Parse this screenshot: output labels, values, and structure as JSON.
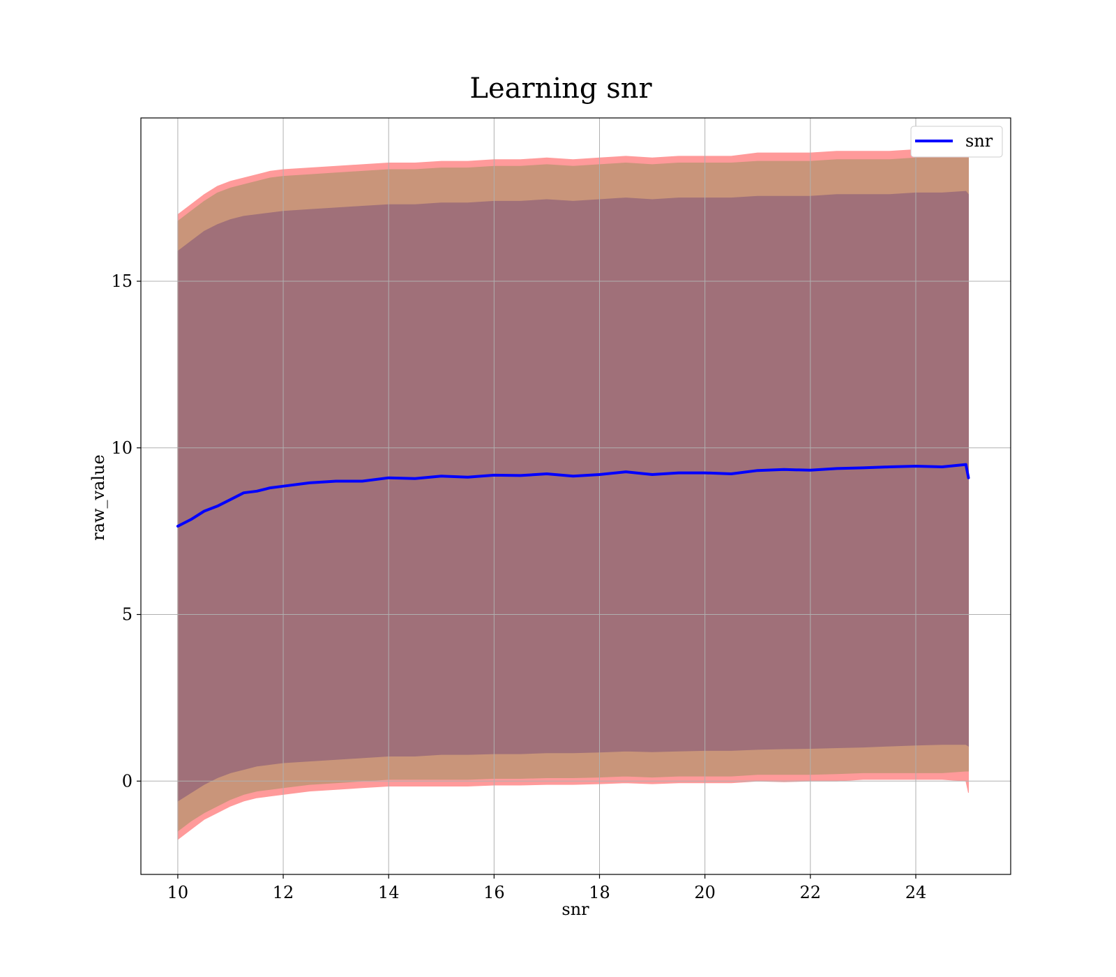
{
  "chart_data": {
    "type": "line",
    "title": "Learning snr",
    "xlabel": "snr",
    "ylabel": "raw_value",
    "xlim": [
      9.3,
      25.8
    ],
    "ylim": [
      -2.8,
      19.9
    ],
    "xticks": [
      10,
      12,
      14,
      16,
      18,
      20,
      22,
      24
    ],
    "yticks": [
      0,
      5,
      10,
      15
    ],
    "grid": true,
    "legend": {
      "placement": "top-right",
      "entries": [
        "snr"
      ]
    },
    "colors": {
      "line": "#0000ff",
      "outer_band": "#ff9a9a",
      "middle_band": "#c9957a",
      "inner_band": "#a07079",
      "grid": "#b0b0b0"
    },
    "series": [
      {
        "name": "snr",
        "x": [
          10,
          10.25,
          10.5,
          10.75,
          11,
          11.25,
          11.5,
          11.75,
          12,
          12.5,
          13,
          13.5,
          14,
          14.5,
          15,
          15.5,
          16,
          16.5,
          17,
          17.5,
          18,
          18.5,
          19,
          19.5,
          20,
          20.5,
          21,
          21.5,
          22,
          22.5,
          23,
          23.5,
          24,
          24.5,
          24.95,
          25
        ],
        "values": [
          7.65,
          7.85,
          8.1,
          8.25,
          8.45,
          8.65,
          8.7,
          8.8,
          8.85,
          8.95,
          9.0,
          9.0,
          9.1,
          9.08,
          9.15,
          9.12,
          9.18,
          9.17,
          9.22,
          9.15,
          9.2,
          9.28,
          9.2,
          9.25,
          9.25,
          9.22,
          9.32,
          9.35,
          9.33,
          9.38,
          9.4,
          9.43,
          9.45,
          9.43,
          9.5,
          9.1
        ]
      }
    ],
    "bands": [
      {
        "color_key": "outer_band",
        "upper": [
          17.0,
          17.3,
          17.6,
          17.85,
          18.0,
          18.1,
          18.2,
          18.3,
          18.35,
          18.4,
          18.45,
          18.5,
          18.55,
          18.55,
          18.6,
          18.6,
          18.65,
          18.65,
          18.7,
          18.65,
          18.7,
          18.75,
          18.7,
          18.75,
          18.75,
          18.75,
          18.85,
          18.85,
          18.85,
          18.9,
          18.9,
          18.9,
          18.95,
          18.95,
          18.95,
          18.9
        ],
        "lower": [
          -1.75,
          -1.45,
          -1.15,
          -0.95,
          -0.75,
          -0.6,
          -0.5,
          -0.45,
          -0.4,
          -0.3,
          -0.25,
          -0.2,
          -0.15,
          -0.15,
          -0.15,
          -0.15,
          -0.12,
          -0.12,
          -0.1,
          -0.1,
          -0.08,
          -0.05,
          -0.08,
          -0.05,
          -0.05,
          -0.05,
          0.0,
          -0.02,
          0.0,
          0.0,
          0.05,
          0.05,
          0.05,
          0.05,
          0.0,
          -0.35
        ]
      },
      {
        "color_key": "middle_band",
        "upper": [
          16.8,
          17.1,
          17.4,
          17.65,
          17.8,
          17.9,
          18.0,
          18.1,
          18.15,
          18.2,
          18.25,
          18.3,
          18.35,
          18.35,
          18.4,
          18.4,
          18.45,
          18.45,
          18.5,
          18.45,
          18.5,
          18.55,
          18.5,
          18.55,
          18.55,
          18.55,
          18.6,
          18.6,
          18.6,
          18.65,
          18.65,
          18.65,
          18.7,
          18.7,
          18.7,
          18.7
        ],
        "lower": [
          -1.5,
          -1.2,
          -0.95,
          -0.75,
          -0.55,
          -0.4,
          -0.3,
          -0.25,
          -0.2,
          -0.1,
          -0.05,
          0.0,
          0.05,
          0.05,
          0.05,
          0.05,
          0.08,
          0.08,
          0.1,
          0.1,
          0.12,
          0.15,
          0.12,
          0.15,
          0.15,
          0.15,
          0.2,
          0.2,
          0.2,
          0.22,
          0.25,
          0.25,
          0.25,
          0.25,
          0.3,
          0.3
        ]
      },
      {
        "color_key": "inner_band",
        "upper": [
          15.9,
          16.2,
          16.5,
          16.7,
          16.85,
          16.95,
          17.0,
          17.05,
          17.1,
          17.15,
          17.2,
          17.25,
          17.3,
          17.3,
          17.35,
          17.35,
          17.4,
          17.4,
          17.45,
          17.4,
          17.45,
          17.5,
          17.45,
          17.5,
          17.5,
          17.5,
          17.55,
          17.55,
          17.55,
          17.6,
          17.6,
          17.6,
          17.65,
          17.65,
          17.7,
          17.6
        ],
        "lower": [
          -0.6,
          -0.35,
          -0.1,
          0.1,
          0.25,
          0.35,
          0.45,
          0.5,
          0.55,
          0.6,
          0.65,
          0.7,
          0.75,
          0.75,
          0.8,
          0.8,
          0.82,
          0.82,
          0.85,
          0.85,
          0.87,
          0.9,
          0.88,
          0.9,
          0.92,
          0.92,
          0.95,
          0.97,
          0.98,
          1.0,
          1.02,
          1.05,
          1.08,
          1.1,
          1.1,
          1.05
        ]
      }
    ]
  }
}
